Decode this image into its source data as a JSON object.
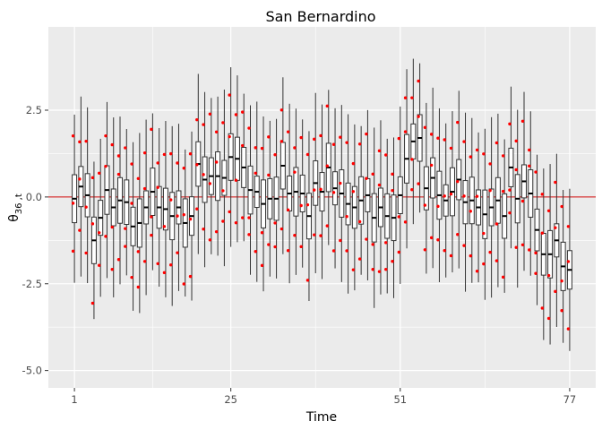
{
  "chart_data": {
    "type": "boxplot",
    "title": "San Bernardino",
    "xlabel": "Time",
    "ylabel": {
      "base": "θ",
      "subscript": "36 ,t"
    },
    "xlim": [
      -3,
      81
    ],
    "ylim": [
      -5.5,
      4.9
    ],
    "x_ticks": [
      {
        "value": 1,
        "label": "1"
      },
      {
        "value": 25,
        "label": "25"
      },
      {
        "value": 51,
        "label": "51"
      },
      {
        "value": 77,
        "label": "77"
      }
    ],
    "y_ticks": [
      {
        "value": 2.5,
        "label": "2.5"
      },
      {
        "value": 0,
        "label": "0.0"
      },
      {
        "value": -2.5,
        "label": "-2.5"
      },
      {
        "value": -5,
        "label": "-5.0"
      }
    ],
    "reference_line": {
      "y": 0,
      "color": "#cc0000"
    },
    "point_color": "#ff0000",
    "panel_background": "#ebebeb",
    "grid": true,
    "medians": [
      -0.05,
      0.3,
      0.05,
      -1.25,
      -0.6,
      0.2,
      -0.3,
      -0.1,
      -0.15,
      -0.85,
      -0.75,
      -0.3,
      0.15,
      -0.3,
      -0.35,
      -0.55,
      -0.3,
      -0.75,
      -0.55,
      0.95,
      0.5,
      0.6,
      0.6,
      0.55,
      1.15,
      1.1,
      0.85,
      0.2,
      0.15,
      -0.2,
      -0.05,
      -0.05,
      0.9,
      0.1,
      0.15,
      0.1,
      -0.55,
      0.4,
      0.15,
      0.85,
      0.25,
      0.1,
      -0.2,
      -0.3,
      -0.1,
      0.05,
      -0.6,
      -0.3,
      -0.55,
      -0.6,
      0.05,
      1.1,
      1.6,
      1.7,
      0.25,
      0.55,
      0.05,
      -0.1,
      0.15,
      0.5,
      -0.15,
      -0.1,
      -0.3,
      -0.5,
      -0.3,
      -0.1,
      -0.55,
      0.85,
      -0.05,
      0.45,
      0.1,
      -0.95,
      -1.65,
      -1.65,
      -1.25,
      -2.0,
      -2.1
    ]
  }
}
